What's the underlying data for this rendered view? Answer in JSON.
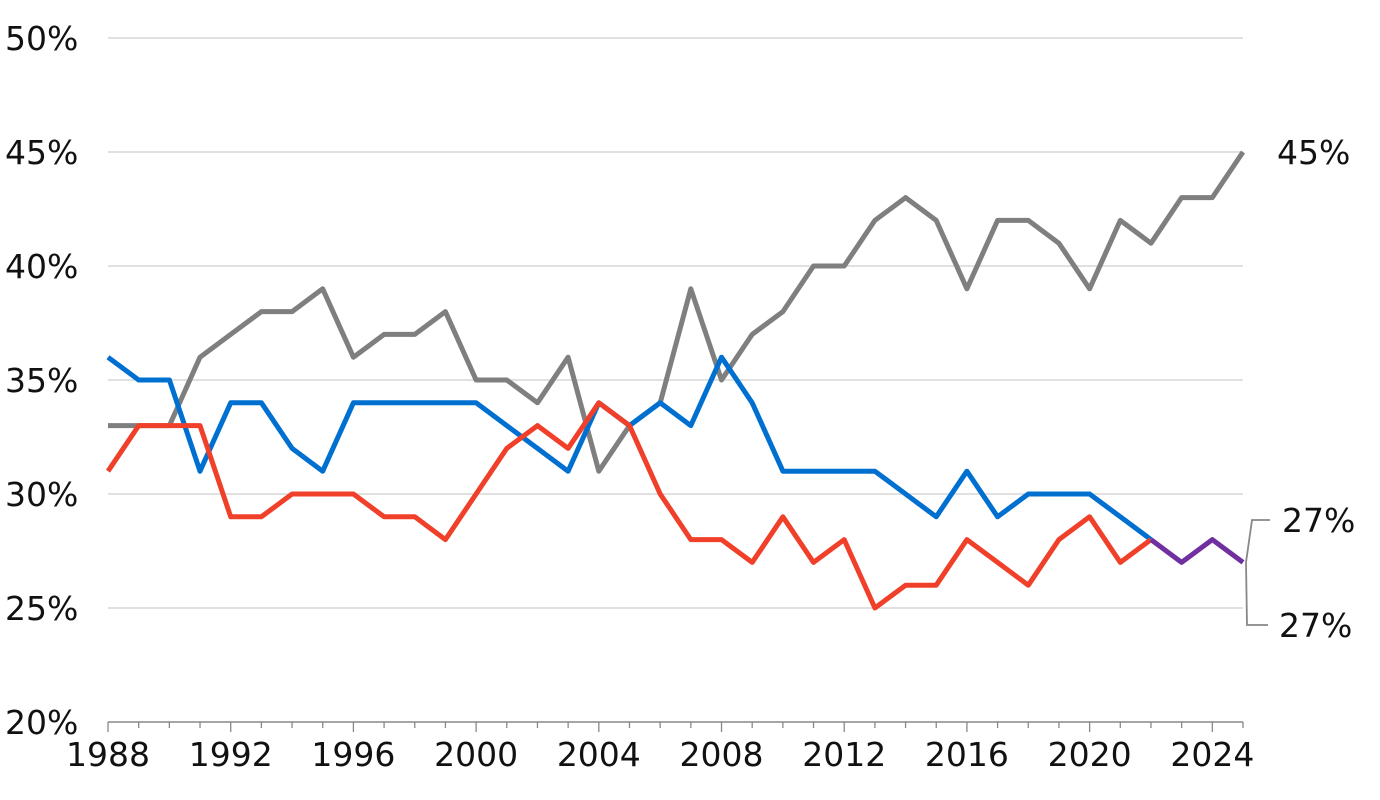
{
  "chart_data": {
    "type": "line",
    "title": "",
    "xlabel": "",
    "ylabel": "",
    "xlim": [
      1988,
      2025
    ],
    "ylim": [
      20,
      50
    ],
    "grid": true,
    "y_ticks": [
      "20%",
      "25%",
      "30%",
      "35%",
      "40%",
      "45%",
      "50%"
    ],
    "y_tick_values": [
      20,
      25,
      30,
      35,
      40,
      45,
      50
    ],
    "x_ticks": [
      "1988",
      "1992",
      "1996",
      "2000",
      "2004",
      "2008",
      "2012",
      "2016",
      "2020",
      "2024"
    ],
    "x_tick_values": [
      1988,
      1992,
      1996,
      2000,
      2004,
      2008,
      2012,
      2016,
      2020,
      2024
    ],
    "series": [
      {
        "color": "#7f7f7f",
        "x": [
          1988,
          1989,
          1990,
          1991,
          1992,
          1993,
          1994,
          1995,
          1996,
          1997,
          1998,
          1999,
          2000,
          2001,
          2002,
          2003,
          2004,
          2005,
          2006,
          2007,
          2008,
          2009,
          2010,
          2011,
          2012,
          2013,
          2014,
          2015,
          2016,
          2017,
          2018,
          2019,
          2020,
          2021,
          2022,
          2023,
          2024,
          2025
        ],
        "values": [
          33,
          33,
          33,
          36,
          37,
          38,
          38,
          39,
          36,
          37,
          37,
          38,
          35,
          35,
          34,
          36,
          31,
          33,
          34,
          39,
          35,
          37,
          38,
          40,
          40,
          42,
          43,
          42,
          39,
          42,
          42,
          41,
          39,
          42,
          41,
          43,
          43,
          45
        ]
      },
      {
        "color": "#0070d0",
        "x": [
          1988,
          1989,
          1990,
          1991,
          1992,
          1993,
          1994,
          1995,
          1996,
          1997,
          1998,
          1999,
          2000,
          2001,
          2002,
          2003,
          2004,
          2005,
          2006,
          2007,
          2008,
          2009,
          2010,
          2011,
          2012,
          2013,
          2014,
          2015,
          2016,
          2017,
          2018,
          2019,
          2020,
          2021,
          2022
        ],
        "values": [
          36,
          35,
          35,
          31,
          34,
          34,
          32,
          31,
          34,
          34,
          34,
          34,
          34,
          33,
          32,
          31,
          34,
          33,
          34,
          33,
          36,
          34,
          31,
          31,
          31,
          31,
          30,
          29,
          31,
          29,
          30,
          30,
          30,
          29,
          28
        ]
      },
      {
        "color": "#f0402a",
        "x": [
          1988,
          1989,
          1990,
          1991,
          1992,
          1993,
          1994,
          1995,
          1996,
          1997,
          1998,
          1999,
          2000,
          2001,
          2002,
          2003,
          2004,
          2005,
          2006,
          2007,
          2008,
          2009,
          2010,
          2011,
          2012,
          2013,
          2014,
          2015,
          2016,
          2017,
          2018,
          2019,
          2020,
          2021,
          2022
        ],
        "values": [
          31,
          33,
          33,
          33,
          29,
          29,
          30,
          30,
          30,
          29,
          29,
          28,
          30,
          32,
          33,
          32,
          34,
          33,
          30,
          28,
          28,
          27,
          29,
          27,
          28,
          25,
          26,
          26,
          28,
          27,
          26,
          28,
          29,
          27,
          28
        ]
      },
      {
        "color": "#7030a0",
        "x": [
          2022,
          2023,
          2024,
          2025
        ],
        "values": [
          28,
          27,
          28,
          27
        ]
      }
    ],
    "end_labels": [
      {
        "text": "45%",
        "value": 45
      },
      {
        "text": "27%",
        "value": 27
      },
      {
        "text": "27%",
        "value": 27
      }
    ]
  }
}
